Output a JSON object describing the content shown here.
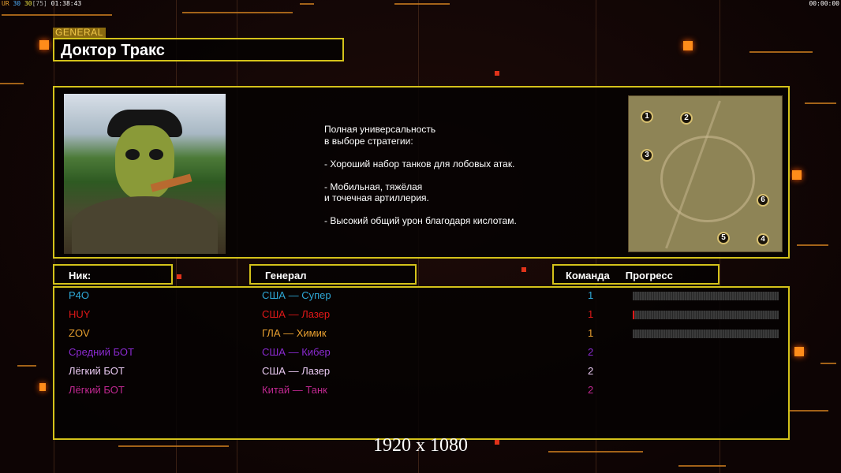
{
  "hud": {
    "left_prefix": "UR",
    "left_a": "30",
    "left_b": "30",
    "left_c": "[75]",
    "left_time": "01:38:43",
    "right_time": "00:00:00"
  },
  "header": {
    "tag": "GENERAL",
    "title": "Доктор Тракс"
  },
  "info": {
    "description": "Полная универсальность\nв выборе стратегии:\n\n- Хороший набор танков для лобовых атак.\n\n- Мобильная, тяжёлая\nи точечная артиллерия.\n\n- Высокий общий урон благодаря кислотам.",
    "map_slots": [
      "1",
      "2",
      "3",
      "4",
      "5",
      "6"
    ]
  },
  "columns": {
    "nick": "Ник:",
    "general": "Генерал",
    "team": "Команда",
    "progress": "Прогресс"
  },
  "players": [
    {
      "nick": "P4O",
      "general": "США — Супер",
      "team": "1",
      "color": "#2ea8d6",
      "progress": 0
    },
    {
      "nick": "HUY",
      "general": "США — Лазер",
      "team": "1",
      "color": "#e01818",
      "progress": 0.01
    },
    {
      "nick": "ZOV",
      "general": "ГЛА — Химик",
      "team": "1",
      "color": "#e8a030",
      "progress": 0
    },
    {
      "nick": "Средний БОТ",
      "general": "США — Кибер",
      "team": "2",
      "color": "#8a2ad0",
      "progress": null
    },
    {
      "nick": "Лёгкий БОТ",
      "general": "США — Лазер",
      "team": "2",
      "color": "#e8c8f0",
      "progress": null
    },
    {
      "nick": "Лёгкий БОТ",
      "general": "Китай — Танк",
      "team": "2",
      "color": "#c02890",
      "progress": null
    }
  ],
  "resolution": "1920 x 1080",
  "colors": {
    "frame": "#d4c21a",
    "accent": "#ff8c1a"
  }
}
